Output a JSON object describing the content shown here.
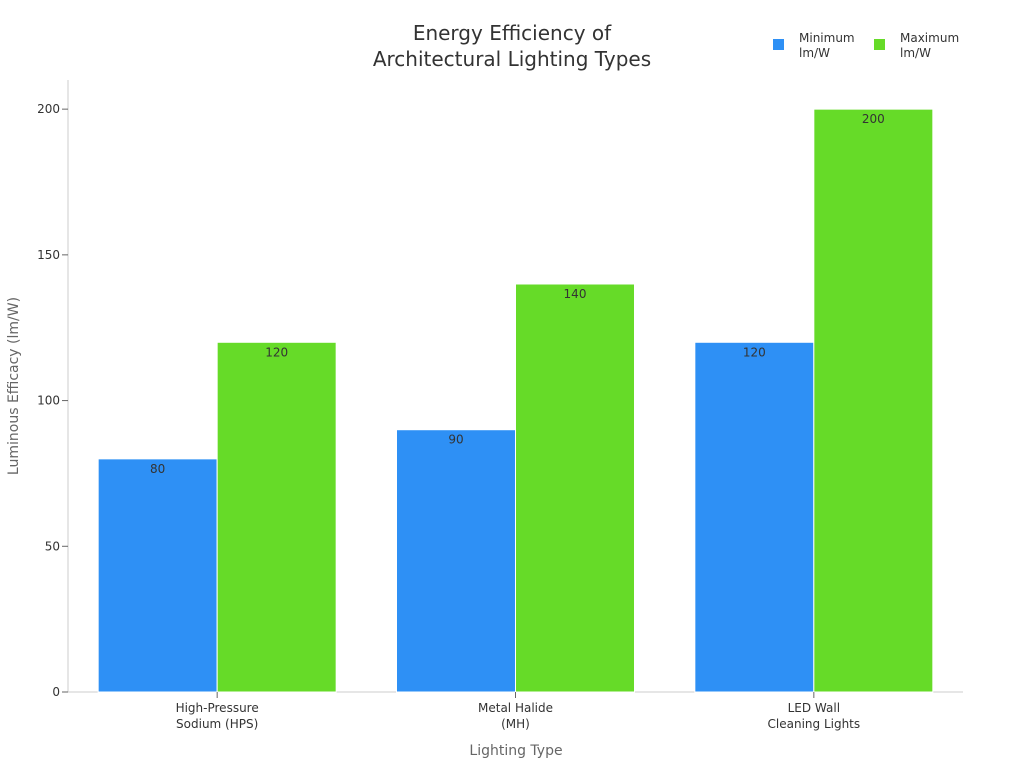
{
  "chart_data": {
    "type": "bar",
    "title": [
      "Energy Efficiency of",
      "Architectural Lighting Types"
    ],
    "categories": [
      [
        "High-Pressure",
        "Sodium (HPS)"
      ],
      [
        "Metal Halide",
        "(MH)"
      ],
      [
        "LED Wall",
        "Cleaning Lights"
      ]
    ],
    "series": [
      {
        "name": [
          "Minimum",
          "lm/W"
        ],
        "values": [
          80,
          90,
          120
        ],
        "color": "#2E90F5"
      },
      {
        "name": [
          "Maximum",
          "lm/W"
        ],
        "values": [
          120,
          140,
          200
        ],
        "color": "#66DB28"
      }
    ],
    "xlabel": "Lighting Type",
    "ylabel": "Luminous Efficacy (lm/W)",
    "ylim": [
      0,
      210
    ],
    "yticks": [
      0,
      50,
      100,
      150,
      200
    ],
    "grid": false,
    "legend_position": "top-right",
    "data_labels": true
  }
}
